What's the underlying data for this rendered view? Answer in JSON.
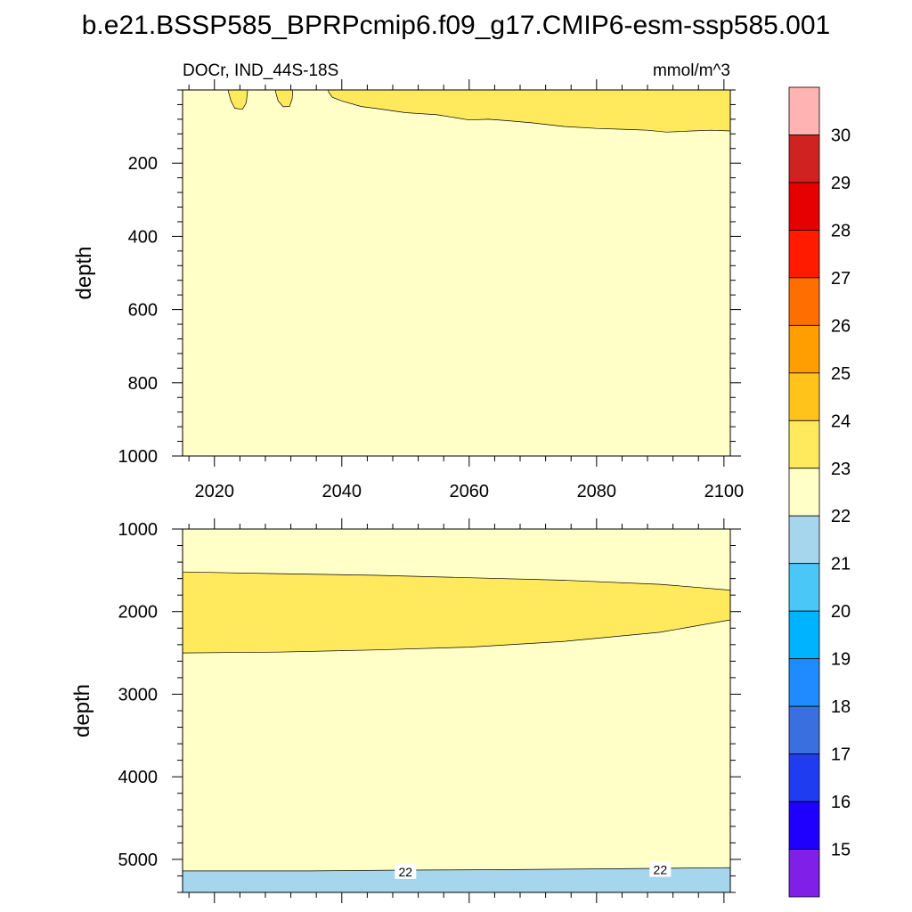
{
  "title": "b.e21.BSSP585_BPRPcmip6.f09_g17.CMIP6-esm-ssp585.001",
  "chart_data": {
    "type": "contour",
    "variable": "DOCr",
    "region": "IND_44S-18S",
    "units": "mmol/m^3",
    "subtitle_left": "DOCr, IND_44S-18S",
    "subtitle_right": "mmol/m^3",
    "xlim": [
      2015,
      2101
    ],
    "x_ticks": [
      2020,
      2040,
      2060,
      2080,
      2100
    ],
    "x_tick_labels": [
      "2020",
      "2040",
      "2060",
      "2080",
      "2100"
    ],
    "panels": [
      {
        "name": "upper",
        "ylabel": "depth",
        "ylim": [
          0,
          1000
        ],
        "y_ticks": [
          200,
          400,
          600,
          800,
          1000
        ],
        "y_tick_labels": [
          "200",
          "400",
          "600",
          "800",
          "1000"
        ],
        "background_band": "22-23",
        "regions": [
          {
            "band": "23-24",
            "boundary": [
              [
                2037.9,
                5
              ],
              [
                2038.5,
                20
              ],
              [
                2040,
                30
              ],
              [
                2043,
                45
              ],
              [
                2046,
                52
              ],
              [
                2050,
                62
              ],
              [
                2055,
                68
              ],
              [
                2060,
                82
              ],
              [
                2063,
                80
              ],
              [
                2066,
                84
              ],
              [
                2070,
                90
              ],
              [
                2075,
                100
              ],
              [
                2080,
                105
              ],
              [
                2085,
                108
              ],
              [
                2088,
                110
              ],
              [
                2091,
                115
              ],
              [
                2095,
                112
              ],
              [
                2098,
                110
              ],
              [
                2101,
                112
              ]
            ]
          },
          {
            "band": "23-24",
            "blob": [
              [
                2022.2,
                5
              ],
              [
                2022.6,
                30
              ],
              [
                2023.2,
                50
              ],
              [
                2024.4,
                53
              ],
              [
                2025.0,
                35
              ],
              [
                2025.2,
                5
              ]
            ]
          },
          {
            "band": "23-24",
            "blob": [
              [
                2029.6,
                5
              ],
              [
                2030.0,
                30
              ],
              [
                2030.8,
                46
              ],
              [
                2031.8,
                45
              ],
              [
                2032.2,
                25
              ],
              [
                2032.3,
                5
              ]
            ]
          }
        ]
      },
      {
        "name": "lower",
        "ylabel": "depth",
        "ylim": [
          1000,
          5400
        ],
        "y_ticks": [
          1000,
          2000,
          3000,
          4000,
          5000
        ],
        "y_tick_labels": [
          "1000",
          "2000",
          "3000",
          "4000",
          "5000"
        ],
        "background_band": "22-23",
        "regions": [
          {
            "band": "23-24",
            "upper": [
              [
                2015,
                1520
              ],
              [
                2030,
                1540
              ],
              [
                2045,
                1560
              ],
              [
                2060,
                1590
              ],
              [
                2075,
                1620
              ],
              [
                2090,
                1670
              ],
              [
                2101,
                1740
              ]
            ],
            "lower": [
              [
                2015,
                2500
              ],
              [
                2030,
                2490
              ],
              [
                2045,
                2465
              ],
              [
                2060,
                2430
              ],
              [
                2075,
                2360
              ],
              [
                2090,
                2250
              ],
              [
                2101,
                2100
              ]
            ]
          },
          {
            "band": "21-22",
            "upper": [
              [
                2015,
                5140
              ],
              [
                2035,
                5140
              ],
              [
                2050,
                5130
              ],
              [
                2065,
                5125
              ],
              [
                2080,
                5115
              ],
              [
                2101,
                5100
              ]
            ]
          }
        ],
        "contour_labels": [
          {
            "text": "22",
            "x": 2050,
            "y": 5150
          },
          {
            "text": "22",
            "x": 2090,
            "y": 5125
          }
        ]
      }
    ],
    "colorbar": {
      "levels": [
        "15",
        "16",
        "17",
        "18",
        "19",
        "20",
        "21",
        "22",
        "23",
        "24",
        "25",
        "26",
        "27",
        "28",
        "29",
        "30"
      ],
      "colors": [
        "#7f1fe8",
        "#1f00ff",
        "#1f3cf0",
        "#3a6fe0",
        "#1f8bff",
        "#00b3ff",
        "#4ac6f7",
        "#a6d6ee",
        "#ffffc8",
        "#ffea5e",
        "#ffc31a",
        "#ff9e00",
        "#ff6e00",
        "#ff1a00",
        "#e60000",
        "#d12222",
        "#ffb3b3"
      ]
    }
  }
}
